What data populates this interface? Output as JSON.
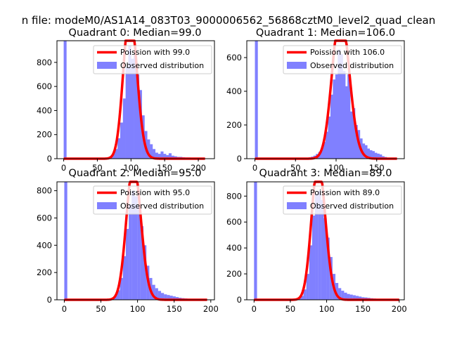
{
  "figure_title": "n file: modeM0/AS1A14_083T03_9000006562_56868cztM0_level2_quad_clean",
  "colors": {
    "fit": "#ff0000",
    "hist": "#8080ff",
    "axis": "#000000"
  },
  "chart_data": [
    {
      "type": "bar",
      "title": "Quadrant 0: Median=99.0",
      "median": 99.0,
      "xlim": [
        -10,
        224
      ],
      "ylim": [
        0,
        980
      ],
      "xticks": [
        0,
        50,
        100,
        150,
        200
      ],
      "yticks": [
        0,
        200,
        400,
        600,
        800
      ],
      "legend": {
        "placement": "upper right",
        "entries": [
          "Poission with 99.0",
          "Observed distribution"
        ]
      },
      "series": [
        {
          "name": "Observed distribution",
          "bin_width": 4.3,
          "bin_starts": [
            0,
            60,
            64,
            68,
            72,
            76,
            80,
            84,
            88,
            92,
            96,
            100,
            104,
            108,
            112,
            116,
            120,
            124,
            128,
            132,
            136,
            140,
            144,
            148,
            152,
            156,
            160,
            164,
            168,
            172,
            176,
            180,
            184,
            188,
            192,
            196,
            200
          ],
          "counts": [
            980,
            4,
            10,
            20,
            45,
            80,
            170,
            300,
            500,
            760,
            940,
            830,
            860,
            700,
            570,
            360,
            230,
            160,
            120,
            80,
            50,
            40,
            60,
            40,
            30,
            45,
            25,
            20,
            15,
            15,
            12,
            10,
            10,
            8,
            6,
            4,
            3
          ]
        },
        {
          "name": "Poission with 99.0",
          "type": "line",
          "x_range": [
            0,
            210
          ]
        }
      ]
    },
    {
      "type": "bar",
      "title": "Quadrant 1: Median=106.0",
      "median": 106.0,
      "xlim": [
        -10,
        184
      ],
      "ylim": [
        0,
        700
      ],
      "xticks": [
        0,
        50,
        100,
        150
      ],
      "yticks": [
        0,
        200,
        400,
        600
      ],
      "legend": {
        "placement": "upper right",
        "entries": [
          "Poission with 106.0",
          "Observed distribution"
        ]
      },
      "series": [
        {
          "name": "Observed distribution",
          "bin_width": 3.6,
          "bin_starts": [
            0,
            57,
            60,
            63,
            66,
            69,
            72,
            75,
            78,
            81,
            84,
            87,
            90,
            93,
            96,
            99,
            102,
            105,
            108,
            111,
            114,
            117,
            120,
            123,
            126,
            129,
            132,
            135,
            138,
            141,
            144,
            147,
            150,
            153,
            156,
            159,
            162
          ],
          "counts": [
            700,
            2,
            4,
            5,
            8,
            12,
            18,
            28,
            40,
            60,
            100,
            160,
            250,
            380,
            470,
            500,
            650,
            620,
            520,
            430,
            500,
            280,
            300,
            200,
            170,
            120,
            90,
            80,
            60,
            50,
            45,
            35,
            30,
            25,
            15,
            10,
            5
          ]
        },
        {
          "name": "Poission with 106.0",
          "type": "line",
          "x_range": [
            0,
            175
          ]
        }
      ]
    },
    {
      "type": "bar",
      "title": "Quadrant 2: Median=95.0",
      "median": 95.0,
      "xlim": [
        -10,
        205
      ],
      "ylim": [
        0,
        865
      ],
      "xticks": [
        0,
        50,
        100,
        150,
        200
      ],
      "yticks": [
        0,
        200,
        400,
        600,
        800
      ],
      "legend": {
        "placement": "upper right",
        "entries": [
          "Poission with 95.0",
          "Observed distribution"
        ]
      },
      "series": [
        {
          "name": "Observed distribution",
          "bin_width": 4.1,
          "bin_starts": [
            0,
            56,
            60,
            64,
            68,
            72,
            76,
            80,
            84,
            88,
            92,
            96,
            100,
            104,
            108,
            112,
            116,
            120,
            124,
            128,
            132,
            136,
            140,
            144,
            148,
            152,
            156,
            160,
            164,
            168,
            172,
            176,
            180,
            184,
            188,
            192
          ],
          "counts": [
            865,
            3,
            6,
            12,
            30,
            70,
            160,
            320,
            520,
            700,
            800,
            760,
            690,
            540,
            400,
            250,
            160,
            110,
            85,
            65,
            50,
            40,
            35,
            30,
            25,
            20,
            15,
            12,
            10,
            8,
            6,
            5,
            4,
            3,
            2,
            2
          ]
        },
        {
          "name": "Poission with 95.0",
          "type": "line",
          "x_range": [
            0,
            195
          ]
        }
      ]
    },
    {
      "type": "bar",
      "title": "Quadrant 3: Median=89.0",
      "median": 89.0,
      "xlim": [
        -10,
        207
      ],
      "ylim": [
        0,
        910
      ],
      "xticks": [
        0,
        50,
        100,
        150,
        200
      ],
      "yticks": [
        0,
        200,
        400,
        600,
        800
      ],
      "legend": {
        "placement": "upper right",
        "entries": [
          "Poission with 89.0",
          "Observed distribution"
        ]
      },
      "series": [
        {
          "name": "Observed distribution",
          "bin_width": 4.1,
          "bin_starts": [
            0,
            52,
            56,
            60,
            64,
            68,
            72,
            76,
            80,
            84,
            88,
            92,
            96,
            100,
            104,
            108,
            112,
            116,
            120,
            124,
            128,
            132,
            136,
            140,
            144,
            148,
            152,
            156,
            160,
            164,
            168,
            172,
            176,
            180,
            184,
            188,
            192
          ],
          "counts": [
            910,
            3,
            6,
            12,
            30,
            80,
            200,
            420,
            650,
            820,
            840,
            770,
            630,
            480,
            330,
            200,
            130,
            90,
            70,
            55,
            45,
            40,
            35,
            30,
            25,
            20,
            18,
            15,
            12,
            10,
            8,
            6,
            5,
            4,
            3,
            2,
            2
          ]
        },
        {
          "name": "Poission with 89.0",
          "type": "line",
          "x_range": [
            0,
            200
          ]
        }
      ]
    }
  ]
}
